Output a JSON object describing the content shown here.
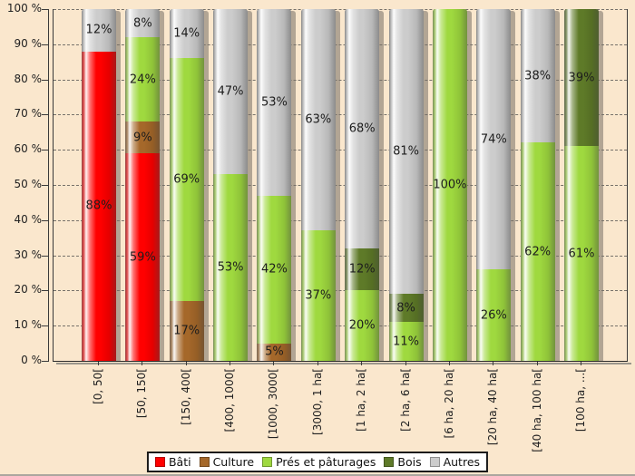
{
  "chart_data": {
    "type": "bar",
    "stacked": true,
    "percent": true,
    "title": "",
    "categories": [
      "[0, 50[",
      "[50, 150[",
      "[150, 400[",
      "[400, 1000[",
      "[1000, 3000[",
      "[3000, 1 ha[",
      "[1 ha, 2 ha[",
      "[2 ha, 6 ha[",
      "[6 ha, 20 ha[",
      "[20 ha, 40 ha[",
      "[40 ha, 100 ha[",
      "[100 ha, ...["
    ],
    "series": [
      {
        "name": "Bâti",
        "color": "#FF0000",
        "values": [
          88,
          59,
          0,
          0,
          0,
          0,
          0,
          0,
          0,
          0,
          0,
          0
        ]
      },
      {
        "name": "Culture",
        "color": "#A5682A",
        "values": [
          0,
          9,
          17,
          0,
          5,
          0,
          0,
          0,
          0,
          0,
          0,
          0
        ]
      },
      {
        "name": "Prés et pâturages",
        "color": "#9FD93F",
        "values": [
          0,
          24,
          69,
          53,
          42,
          37,
          20,
          11,
          100,
          26,
          62,
          61
        ]
      },
      {
        "name": "Bois",
        "color": "#5E7A28",
        "values": [
          0,
          0,
          0,
          0,
          0,
          0,
          12,
          8,
          0,
          0,
          0,
          39
        ]
      },
      {
        "name": "Autres",
        "color": "#CCCCCC",
        "values": [
          12,
          8,
          14,
          47,
          53,
          63,
          68,
          81,
          0,
          74,
          38,
          0
        ]
      }
    ],
    "y_ticks": [
      "100 %",
      "90 %",
      "80 %",
      "70 %",
      "60 %",
      "50 %",
      "40 %",
      "30 %",
      "20 %",
      "10 %",
      "0 %"
    ],
    "ylim": [
      0,
      100
    ],
    "value_suffix": "%",
    "grid": "horizontal-dashed",
    "legend_position": "bottom-center",
    "colors": {
      "background": "#FAE7CD",
      "axis": "#3A3A3A",
      "grid": "#4A4A4A",
      "label_text": "#1D1D1D",
      "legend_bg": "#FFFFFF",
      "legend_border": "#1A1A1A"
    }
  }
}
